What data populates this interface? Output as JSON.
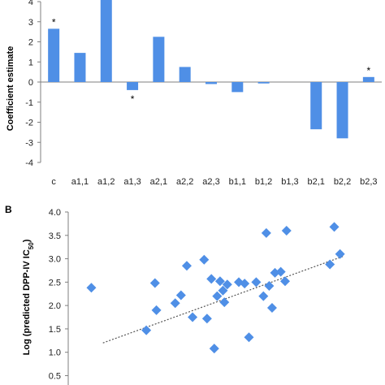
{
  "colors": {
    "series": "#4f8fe6",
    "axis": "#7f7f7f",
    "trend": "#555555"
  },
  "chart_data": [
    {
      "panel": "",
      "type": "bar",
      "ylabel": "Coefficient estimate",
      "ylim": [
        -4,
        4
      ],
      "yticks": [
        -4,
        -3,
        -2,
        -1,
        0,
        1,
        2,
        3,
        4
      ],
      "categories": [
        "c",
        "a1,1",
        "a1,2",
        "a1,3",
        "a2,1",
        "a2,2",
        "a2,3",
        "b1,1",
        "b1,2",
        "b1,3",
        "b2,1",
        "b2,2",
        "b2,3"
      ],
      "values": [
        2.65,
        1.45,
        4.3,
        -0.4,
        2.25,
        0.75,
        -0.1,
        -0.5,
        -0.07,
        0.0,
        -2.35,
        -2.8,
        0.25
      ],
      "significance": [
        "*",
        "",
        "",
        "*",
        "",
        "",
        "",
        "",
        "",
        "",
        "",
        "",
        "*"
      ],
      "grid": false
    },
    {
      "panel": "B",
      "type": "scatter",
      "marker": "diamond",
      "ylabel": "Log (predicted DPP-IV IC",
      "ylabel_subscript": "50",
      "ylabel_suffix": ")",
      "ylim": [
        0.3,
        4.0
      ],
      "yticks": [
        0.5,
        1.0,
        1.5,
        2.0,
        2.5,
        3.0,
        3.5,
        4.0
      ],
      "ytick_labels": [
        "0.5",
        "1.0",
        "1.5",
        "2.0",
        "2.5",
        "3.0",
        "3.5",
        "4.0"
      ],
      "xlim": [
        0,
        100
      ],
      "trendline": {
        "style": "dotted",
        "x": [
          12,
          95
        ],
        "y": [
          1.2,
          3.05
        ]
      },
      "points": [
        {
          "x": 8,
          "y": 2.38
        },
        {
          "x": 30,
          "y": 2.48
        },
        {
          "x": 30.5,
          "y": 1.9
        },
        {
          "x": 27,
          "y": 1.47
        },
        {
          "x": 37,
          "y": 2.05
        },
        {
          "x": 39,
          "y": 2.22
        },
        {
          "x": 41,
          "y": 2.85
        },
        {
          "x": 43,
          "y": 1.75
        },
        {
          "x": 47,
          "y": 2.98
        },
        {
          "x": 48,
          "y": 1.72
        },
        {
          "x": 49.5,
          "y": 2.57
        },
        {
          "x": 50.5,
          "y": 1.08
        },
        {
          "x": 51.5,
          "y": 2.2
        },
        {
          "x": 52.5,
          "y": 2.52
        },
        {
          "x": 53.5,
          "y": 2.32
        },
        {
          "x": 54,
          "y": 2.07
        },
        {
          "x": 55,
          "y": 2.45
        },
        {
          "x": 59,
          "y": 2.5
        },
        {
          "x": 61,
          "y": 2.47
        },
        {
          "x": 62.5,
          "y": 1.32
        },
        {
          "x": 65,
          "y": 2.5
        },
        {
          "x": 67.5,
          "y": 2.2
        },
        {
          "x": 68.5,
          "y": 3.55
        },
        {
          "x": 69.5,
          "y": 2.42
        },
        {
          "x": 70.5,
          "y": 1.95
        },
        {
          "x": 71.5,
          "y": 2.7
        },
        {
          "x": 73.5,
          "y": 2.72
        },
        {
          "x": 75,
          "y": 2.52
        },
        {
          "x": 75.5,
          "y": 3.6
        },
        {
          "x": 90.5,
          "y": 2.88
        },
        {
          "x": 92,
          "y": 3.68
        },
        {
          "x": 94,
          "y": 3.1
        }
      ]
    }
  ]
}
